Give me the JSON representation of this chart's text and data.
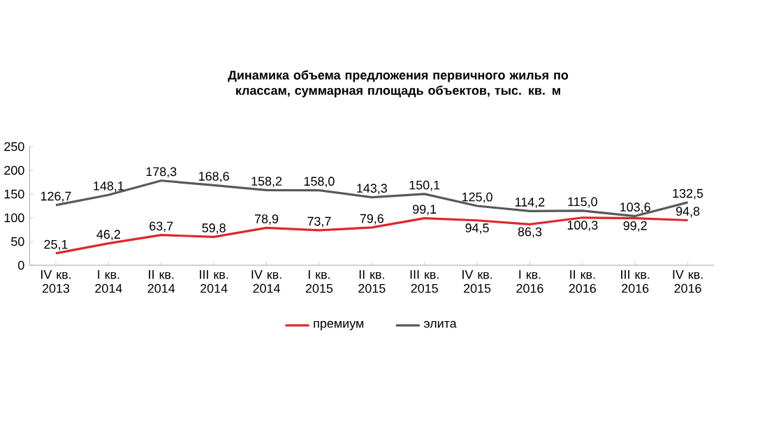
{
  "chart_data": {
    "type": "line",
    "title": "Динамика объема предложения первичного жилья по классам, суммарная площадь объектов, тыс. кв. м",
    "categories": [
      "IV кв. 2013",
      "I кв. 2014",
      "II кв. 2014",
      "III кв. 2014",
      "IV кв. 2014",
      "I кв. 2015",
      "II кв. 2015",
      "III кв. 2015",
      "IV кв. 2015",
      "I кв. 2016",
      "II кв. 2016",
      "III кв. 2016",
      "IV кв. 2016"
    ],
    "series": [
      {
        "name": "премиум",
        "color": "#e0262b",
        "values": [
          25.1,
          46.2,
          63.7,
          59.8,
          78.9,
          73.7,
          79.6,
          99.1,
          94.5,
          86.3,
          100.3,
          99.2,
          94.8
        ],
        "value_labels": [
          "25,1",
          "46,2",
          "63,7",
          "59,8",
          "78,9",
          "73,7",
          "79,6",
          "99,1",
          "94,5",
          "86,3",
          "100,3",
          "99,2",
          "94,8"
        ]
      },
      {
        "name": "элита",
        "color": "#595959",
        "values": [
          126.7,
          148.1,
          178.3,
          168.6,
          158.2,
          158.0,
          143.3,
          150.1,
          125.0,
          114.2,
          115.0,
          103.6,
          132.5
        ],
        "value_labels": [
          "126,7",
          "148,1",
          "178,3",
          "168,6",
          "158,2",
          "158,0",
          "143,3",
          "150,1",
          "125,0",
          "114,2",
          "115,0",
          "103,6",
          "132,5"
        ]
      }
    ],
    "ylim": [
      0,
      250
    ],
    "yticks": [
      0,
      50,
      100,
      150,
      200,
      250
    ],
    "legend": "bottom"
  }
}
